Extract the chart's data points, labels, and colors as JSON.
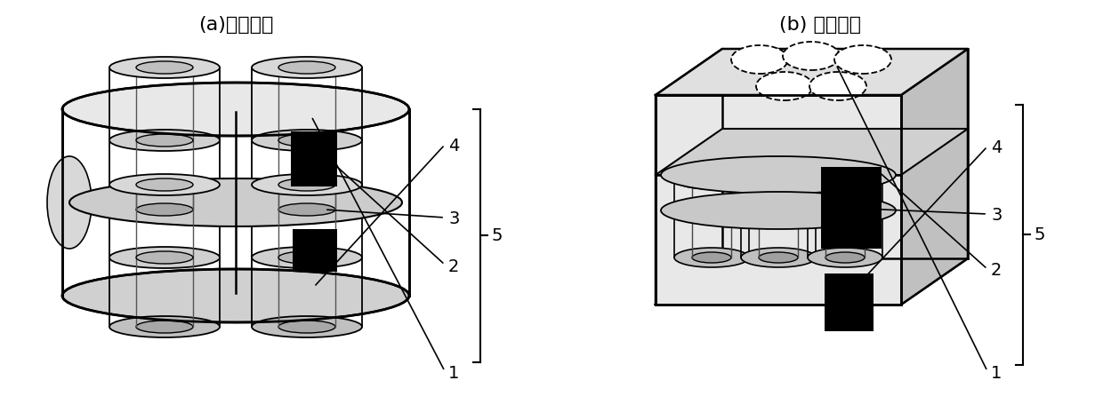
{
  "fig_width": 12.4,
  "fig_height": 4.73,
  "dpi": 100,
  "bg_color": "#ffffff",
  "label_a": "(a)圆柱形壳",
  "label_b": "(b) 棱柱形壳",
  "line_color": "#000000",
  "label_fontsize": 14,
  "caption_fontsize": 16
}
